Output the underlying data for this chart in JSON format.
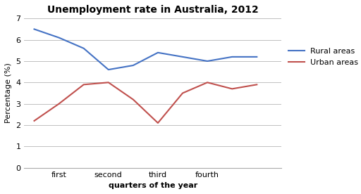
{
  "title": "Unemployment rate in Australia, 2012",
  "xlabel": "quarters of the year",
  "ylabel": "Percentage (%)",
  "x_ticks": [
    1,
    2,
    3,
    4,
    5
  ],
  "x_labels": [
    "first",
    "second",
    "third",
    "fourth",
    ""
  ],
  "ylim": [
    0,
    7
  ],
  "yticks": [
    0,
    1,
    2,
    3,
    4,
    5,
    6,
    7
  ],
  "rural": {
    "label": "Rural areas",
    "color": "#4472C4",
    "x": [
      0.5,
      1,
      1.5,
      2,
      2.5,
      3,
      3.5,
      4,
      4.5,
      5
    ],
    "values": [
      6.5,
      6.1,
      5.6,
      4.6,
      4.8,
      5.4,
      5.2,
      5.0,
      5.2,
      5.2
    ]
  },
  "urban": {
    "label": "Urban areas",
    "color": "#C0504D",
    "x": [
      0.5,
      1,
      1.5,
      2,
      2.5,
      3,
      3.5,
      4,
      4.5,
      5
    ],
    "values": [
      2.2,
      3.0,
      3.9,
      4.0,
      3.2,
      2.1,
      3.5,
      4.0,
      3.7,
      3.9
    ]
  },
  "background_color": "#ffffff",
  "grid_color": "#c0c0c0",
  "figsize": [
    5.12,
    2.76
  ],
  "dpi": 100
}
